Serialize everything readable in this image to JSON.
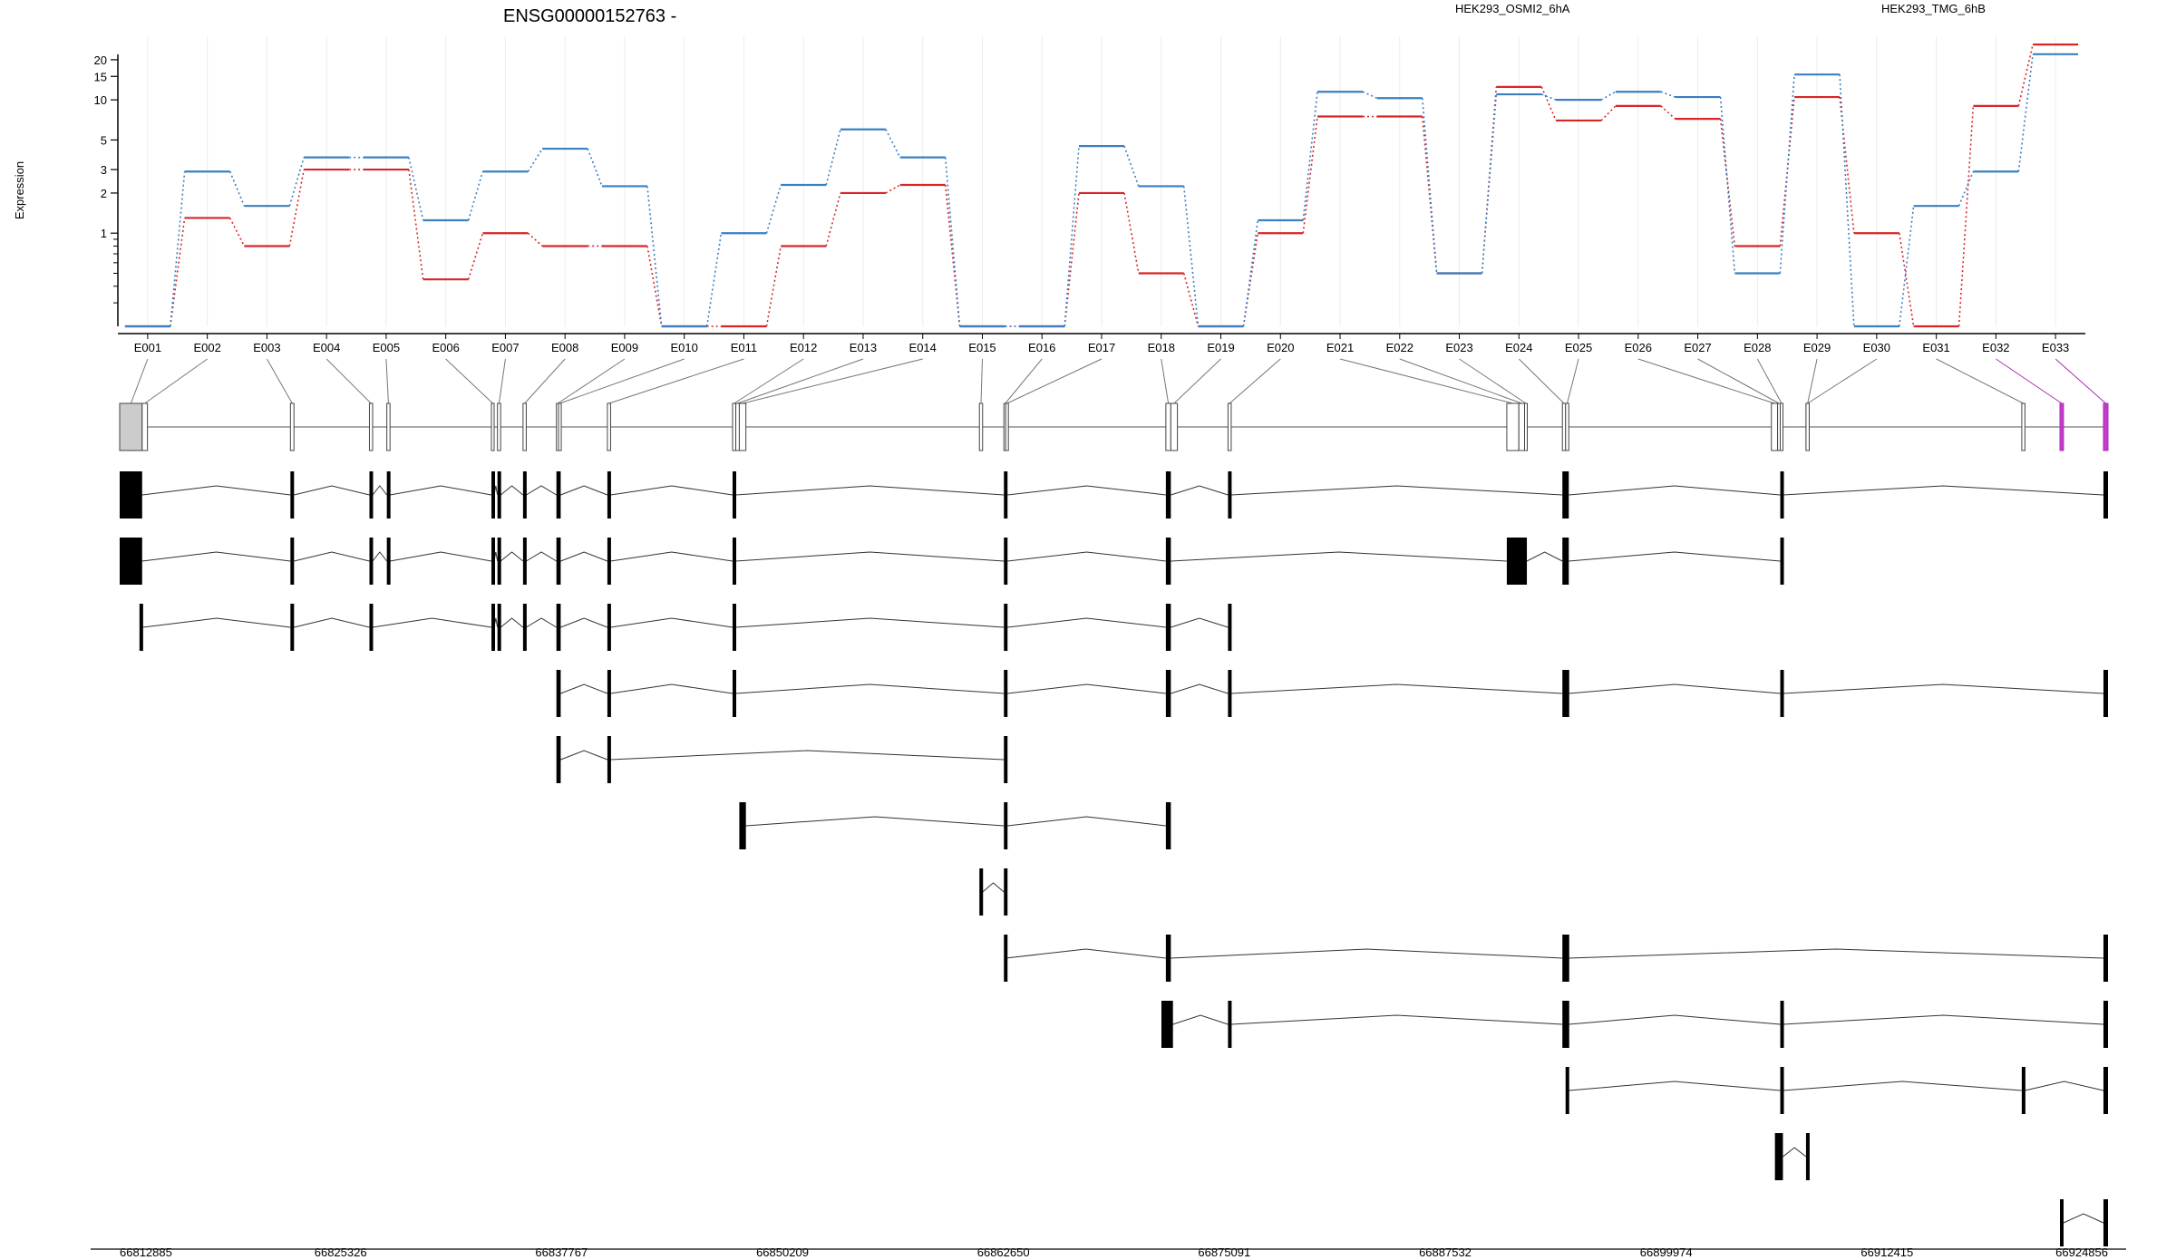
{
  "chart_data": {
    "type": "line",
    "title": "ENSG00000152763 -",
    "ylabel": "Expression",
    "xlabel": "",
    "y_scale": "log",
    "y_ticks": [
      1,
      2,
      3,
      5,
      10,
      15,
      20
    ],
    "legend_placement": "top-right",
    "categories": [
      "E001",
      "E002",
      "E003",
      "E004",
      "E005",
      "E006",
      "E007",
      "E008",
      "E009",
      "E010",
      "E011",
      "E012",
      "E013",
      "E014",
      "E015",
      "E016",
      "E017",
      "E018",
      "E019",
      "E020",
      "E021",
      "E022",
      "E023",
      "E024",
      "E025",
      "E026",
      "E027",
      "E028",
      "E029",
      "E030",
      "E031",
      "E032",
      "E033"
    ],
    "series": [
      {
        "name": "HEK293_OSMI2_6hA",
        "color": "#d62728",
        "values": [
          0.2,
          1.3,
          0.8,
          3.0,
          3.0,
          0.45,
          1.0,
          0.8,
          0.8,
          0.2,
          0.2,
          0.8,
          2.0,
          2.3,
          0.2,
          0.2,
          2.0,
          0.5,
          0.2,
          1.0,
          7.5,
          7.5,
          0.5,
          12.5,
          7.0,
          9.0,
          7.2,
          0.8,
          10.5,
          1.0,
          0.2,
          9.0,
          26.0
        ]
      },
      {
        "name": "HEK293_TMG_6hB",
        "color": "#3a7fc1",
        "values": [
          0.2,
          2.9,
          1.6,
          3.7,
          3.7,
          1.25,
          2.9,
          4.3,
          2.25,
          0.2,
          1.0,
          2.3,
          6.0,
          3.7,
          0.2,
          0.2,
          4.5,
          2.25,
          0.2,
          1.25,
          11.5,
          10.3,
          0.5,
          11.0,
          10.0,
          11.5,
          10.5,
          0.5,
          15.5,
          0.2,
          1.6,
          2.9,
          22.0
        ]
      }
    ],
    "genomic_axis": {
      "ticks": [
        "66812885",
        "66825326",
        "66837767",
        "66850209",
        "66862650",
        "66875091",
        "66887532",
        "66899974",
        "66912415",
        "66924856"
      ],
      "start": 66812885,
      "end": 66924856
    },
    "exons": [
      {
        "name": "E001",
        "start": 66812885,
        "end": 66814150,
        "highlight": false
      },
      {
        "name": "E002",
        "start": 66814150,
        "end": 66814450,
        "highlight": false
      },
      {
        "name": "E003",
        "start": 66822500,
        "end": 66822700,
        "highlight": false
      },
      {
        "name": "E004",
        "start": 66826950,
        "end": 66827130,
        "highlight": false
      },
      {
        "name": "E005",
        "start": 66827930,
        "end": 66828110,
        "highlight": false
      },
      {
        "name": "E006",
        "start": 66833820,
        "end": 66833970,
        "highlight": false
      },
      {
        "name": "E007",
        "start": 66834160,
        "end": 66834340,
        "highlight": false
      },
      {
        "name": "E008",
        "start": 66835600,
        "end": 66835780,
        "highlight": false
      },
      {
        "name": "E009",
        "start": 66837480,
        "end": 66837600,
        "highlight": false
      },
      {
        "name": "E010",
        "start": 66837600,
        "end": 66837720,
        "highlight": false
      },
      {
        "name": "E011",
        "start": 66840350,
        "end": 66840530,
        "highlight": false
      },
      {
        "name": "E012",
        "start": 66847400,
        "end": 66847580,
        "highlight": false
      },
      {
        "name": "E013",
        "start": 66847580,
        "end": 66847780,
        "highlight": false
      },
      {
        "name": "E014",
        "start": 66847780,
        "end": 66848150,
        "highlight": false
      },
      {
        "name": "E015",
        "start": 66861300,
        "end": 66861480,
        "highlight": false
      },
      {
        "name": "E016",
        "start": 66862680,
        "end": 66862780,
        "highlight": false
      },
      {
        "name": "E017",
        "start": 66862780,
        "end": 66862880,
        "highlight": false
      },
      {
        "name": "E018",
        "start": 66871800,
        "end": 66872080,
        "highlight": false
      },
      {
        "name": "E019",
        "start": 66872080,
        "end": 66872450,
        "highlight": false
      },
      {
        "name": "E020",
        "start": 66875300,
        "end": 66875480,
        "highlight": false
      },
      {
        "name": "E021",
        "start": 66891000,
        "end": 66891680,
        "highlight": false
      },
      {
        "name": "E022",
        "start": 66891680,
        "end": 66892000,
        "highlight": false
      },
      {
        "name": "E023",
        "start": 66892000,
        "end": 66892130,
        "highlight": false
      },
      {
        "name": "E024",
        "start": 66894130,
        "end": 66894310,
        "highlight": false
      },
      {
        "name": "E025",
        "start": 66894310,
        "end": 66894490,
        "highlight": false
      },
      {
        "name": "E026",
        "start": 66905900,
        "end": 66906250,
        "highlight": false
      },
      {
        "name": "E027",
        "start": 66906250,
        "end": 66906400,
        "highlight": false
      },
      {
        "name": "E028",
        "start": 66906400,
        "end": 66906550,
        "highlight": false
      },
      {
        "name": "E029",
        "start": 66907850,
        "end": 66908030,
        "highlight": false
      },
      {
        "name": "E030",
        "start": 66907850,
        "end": 66908030,
        "highlight": false
      },
      {
        "name": "E031",
        "start": 66920000,
        "end": 66920180,
        "highlight": false
      },
      {
        "name": "E032",
        "start": 66922150,
        "end": 66922350,
        "highlight": true
      },
      {
        "name": "E033",
        "start": 66924600,
        "end": 66924856,
        "highlight": true
      }
    ],
    "transcripts": [
      {
        "exons": [
          [
            66812885,
            66814150
          ],
          [
            66822500,
            66822700
          ],
          [
            66826950,
            66827130
          ],
          [
            66827930,
            66828110
          ],
          [
            66833820,
            66833970
          ],
          [
            66834160,
            66834340
          ],
          [
            66835600,
            66835780
          ],
          [
            66837480,
            66837720
          ],
          [
            66840350,
            66840530
          ],
          [
            66847400,
            66847580
          ],
          [
            66862680,
            66862880
          ],
          [
            66871800,
            66872080
          ],
          [
            66875300,
            66875480
          ],
          [
            66894130,
            66894490
          ],
          [
            66906400,
            66906550
          ],
          [
            66924600,
            66924856
          ]
        ]
      },
      {
        "exons": [
          [
            66812885,
            66814150
          ],
          [
            66822500,
            66822700
          ],
          [
            66826950,
            66827130
          ],
          [
            66827930,
            66828110
          ],
          [
            66833820,
            66833970
          ],
          [
            66834160,
            66834340
          ],
          [
            66835600,
            66835780
          ],
          [
            66837480,
            66837720
          ],
          [
            66840350,
            66840530
          ],
          [
            66847400,
            66847580
          ],
          [
            66862680,
            66862880
          ],
          [
            66871800,
            66872080
          ],
          [
            66891000,
            66892130
          ],
          [
            66894130,
            66894490
          ],
          [
            66906400,
            66906550
          ]
        ]
      },
      {
        "exons": [
          [
            66814000,
            66814200
          ],
          [
            66822500,
            66822700
          ],
          [
            66826950,
            66827130
          ],
          [
            66833820,
            66833970
          ],
          [
            66834160,
            66834340
          ],
          [
            66835600,
            66835780
          ],
          [
            66837480,
            66837720
          ],
          [
            66840350,
            66840530
          ],
          [
            66847400,
            66847580
          ],
          [
            66862680,
            66862880
          ],
          [
            66871800,
            66872080
          ],
          [
            66875300,
            66875480
          ]
        ]
      },
      {
        "exons": [
          [
            66837480,
            66837720
          ],
          [
            66840350,
            66840530
          ],
          [
            66847400,
            66847580
          ],
          [
            66862680,
            66862880
          ],
          [
            66871800,
            66872080
          ],
          [
            66875300,
            66875480
          ],
          [
            66894130,
            66894310
          ],
          [
            66894310,
            66894490
          ],
          [
            66906400,
            66906550
          ],
          [
            66924600,
            66924856
          ]
        ]
      },
      {
        "exons": [
          [
            66837480,
            66837720
          ],
          [
            66840350,
            66840530
          ],
          [
            66862680,
            66862880
          ]
        ]
      },
      {
        "exons": [
          [
            66847780,
            66848150
          ],
          [
            66862680,
            66862880
          ],
          [
            66871800,
            66872080
          ]
        ]
      },
      {
        "exons": [
          [
            66861300,
            66861480
          ],
          [
            66862680,
            66862880
          ]
        ]
      },
      {
        "exons": [
          [
            66862680,
            66862780
          ],
          [
            66871800,
            66872080
          ],
          [
            66894130,
            66894310
          ],
          [
            66894310,
            66894490
          ],
          [
            66924600,
            66924856
          ]
        ]
      },
      {
        "exons": [
          [
            66871550,
            66872200
          ],
          [
            66875300,
            66875480
          ],
          [
            66894130,
            66894310
          ],
          [
            66894310,
            66894490
          ],
          [
            66906400,
            66906550
          ],
          [
            66924600,
            66924856
          ]
        ]
      },
      {
        "exons": [
          [
            66894310,
            66894490
          ],
          [
            66906400,
            66906550
          ],
          [
            66920000,
            66920180
          ],
          [
            66924600,
            66924856
          ]
        ]
      },
      {
        "exons": [
          [
            66906100,
            66906550
          ],
          [
            66907850,
            66908030
          ]
        ]
      },
      {
        "exons": [
          [
            66922150,
            66922350
          ],
          [
            66924600,
            66924856
          ]
        ]
      }
    ]
  }
}
